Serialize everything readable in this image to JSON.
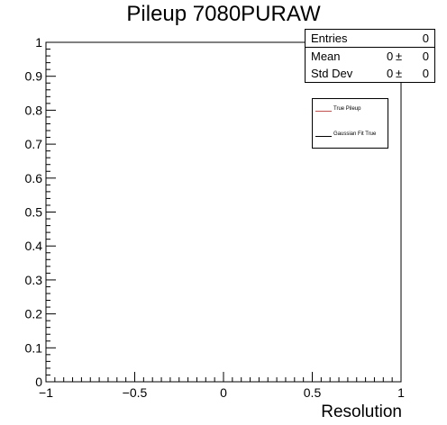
{
  "chart_data": {
    "type": "line",
    "title": "Pileup 7080PURAW",
    "xlabel": "Resolution",
    "ylabel": "",
    "xlim": [
      -1,
      1
    ],
    "ylim": [
      0,
      1
    ],
    "x_ticks": [
      {
        "value": -1,
        "label": "−1"
      },
      {
        "value": -0.5,
        "label": "−0.5"
      },
      {
        "value": 0,
        "label": "0"
      },
      {
        "value": 0.5,
        "label": "0.5"
      },
      {
        "value": 1,
        "label": "1"
      }
    ],
    "y_ticks": [
      {
        "value": 0,
        "label": "0"
      },
      {
        "value": 0.1,
        "label": "0.1"
      },
      {
        "value": 0.2,
        "label": "0.2"
      },
      {
        "value": 0.3,
        "label": "0.3"
      },
      {
        "value": 0.4,
        "label": "0.4"
      },
      {
        "value": 0.5,
        "label": "0.5"
      },
      {
        "value": 0.6,
        "label": "0.6"
      },
      {
        "value": 0.7,
        "label": "0.7"
      },
      {
        "value": 0.8,
        "label": "0.8"
      },
      {
        "value": 0.9,
        "label": "0.9"
      },
      {
        "value": 1,
        "label": "1"
      }
    ],
    "grid": false,
    "series": [
      {
        "name": "True Pileup",
        "color": "#c0504d",
        "x": [],
        "y": []
      },
      {
        "name": "Gaussian Fit True",
        "color": "#000000",
        "x": [],
        "y": []
      }
    ],
    "legend_position": "top-right"
  },
  "stats": {
    "entries_label": "Entries",
    "entries_value": "0",
    "mean_label": "Mean",
    "mean_value": "0",
    "mean_pm": "±",
    "mean_err": "0",
    "std_label": "Std Dev",
    "std_value": "0",
    "std_pm": "±",
    "std_err": "0"
  }
}
